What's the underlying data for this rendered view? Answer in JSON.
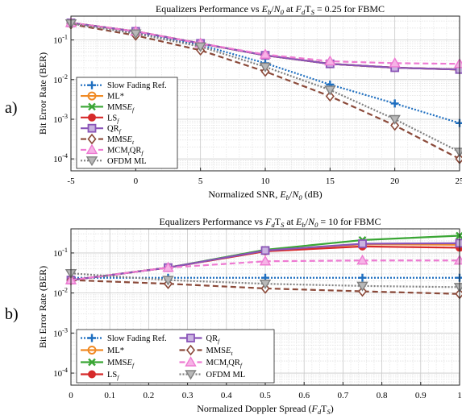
{
  "panel_letters": [
    "a)",
    "b)"
  ],
  "colors": {
    "slow_fading": "#1f6fc0",
    "ml": "#f08a24",
    "mmse_f": "#3aa635",
    "ls_f": "#d62a2a",
    "qr_f": "#8a54b8",
    "mmse_t": "#8b4a3a",
    "mcm_qr": "#ee7ad2",
    "ofdm_ml": "#808080"
  },
  "chart_data": [
    {
      "type": "line",
      "title": "Equalizers Performance vs E_b/N_0 at F_dT_S = 0.25 for FBMC",
      "xlabel": "Normalized SNR, E_b/N_0 (dB)",
      "ylabel": "Bit Error Rate (BER)",
      "yscale": "log",
      "xlim": [
        -5,
        25
      ],
      "ylim": [
        5e-05,
        0.4
      ],
      "x_ticks": [
        "-5",
        "0",
        "5",
        "10",
        "15",
        "20",
        "25"
      ],
      "y_ticks": [
        "10-4",
        "10-3",
        "10-2",
        "10-1"
      ],
      "grid": true,
      "legend_position": "bottom-left",
      "x": [
        -5,
        0,
        5,
        10,
        15,
        20,
        25
      ],
      "series": [
        {
          "name": "Slow Fading Ref.",
          "values": [
            0.26,
            0.15,
            0.075,
            0.026,
            0.0075,
            0.0025,
            0.0008
          ]
        },
        {
          "name": "ML*",
          "values": [
            0.27,
            0.165,
            0.082,
            0.041,
            0.025,
            0.02,
            0.018
          ]
        },
        {
          "name": "MMSE_f",
          "values": [
            0.27,
            0.165,
            0.082,
            0.041,
            0.025,
            0.02,
            0.018
          ]
        },
        {
          "name": "LS_f",
          "values": [
            0.27,
            0.165,
            0.082,
            0.041,
            0.025,
            0.02,
            0.018
          ]
        },
        {
          "name": "QR_f",
          "values": [
            0.27,
            0.165,
            0.082,
            0.041,
            0.025,
            0.02,
            0.018
          ]
        },
        {
          "name": "MMSE_t",
          "values": [
            0.25,
            0.13,
            0.055,
            0.016,
            0.0038,
            0.0007,
            0.0001
          ]
        },
        {
          "name": "MCM_tQR_f",
          "values": [
            0.27,
            0.165,
            0.082,
            0.043,
            0.029,
            0.026,
            0.025
          ]
        },
        {
          "name": "OFDM ML",
          "values": [
            0.26,
            0.145,
            0.068,
            0.021,
            0.0055,
            0.001,
            0.00015
          ]
        }
      ]
    },
    {
      "type": "line",
      "title": "Equalizers Performance vs F_dT_S at E_b/N_0 = 10 for FBMC",
      "xlabel": "Normalized Doppler Spread (F_dT_S)",
      "ylabel": "Bit Error Rate (BER)",
      "yscale": "log",
      "xlim": [
        0,
        1
      ],
      "ylim": [
        5e-05,
        0.4
      ],
      "x_ticks": [
        "0",
        "0.1",
        "0.2",
        "0.3",
        "0.4",
        "0.5",
        "0.6",
        "0.7",
        "0.8",
        "0.9",
        "1"
      ],
      "y_ticks": [
        "10-4",
        "10-3",
        "10-2",
        "10-1"
      ],
      "grid": true,
      "legend_position": "bottom-left",
      "x": [
        0,
        0.25,
        0.5,
        0.75,
        1
      ],
      "series": [
        {
          "name": "Slow Fading Ref.",
          "values": [
            0.024,
            0.024,
            0.024,
            0.024,
            0.024
          ]
        },
        {
          "name": "ML*",
          "values": [
            0.021,
            0.043,
            0.115,
            0.165,
            0.16
          ]
        },
        {
          "name": "MMSE_f",
          "values": [
            0.021,
            0.043,
            0.12,
            0.21,
            0.27
          ]
        },
        {
          "name": "LS_f",
          "values": [
            0.021,
            0.043,
            0.11,
            0.145,
            0.135
          ]
        },
        {
          "name": "QR_f",
          "values": [
            0.021,
            0.043,
            0.115,
            0.17,
            0.175
          ]
        },
        {
          "name": "MMSE_t",
          "values": [
            0.021,
            0.017,
            0.013,
            0.011,
            0.0095
          ]
        },
        {
          "name": "MCM_tQR_f",
          "values": [
            0.021,
            0.043,
            0.062,
            0.065,
            0.065
          ]
        },
        {
          "name": "OFDM ML",
          "values": [
            0.031,
            0.021,
            0.017,
            0.015,
            0.014
          ]
        }
      ]
    }
  ]
}
